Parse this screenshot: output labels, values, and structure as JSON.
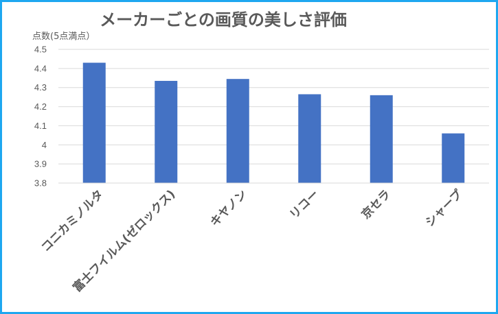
{
  "chart_data": {
    "type": "bar",
    "title": "メーカーごとの画質の美しさ評価",
    "ylabel": "点数(5点満点）",
    "xlabel": "",
    "categories": [
      "コニカミノルタ",
      "富士フイルム(ゼロックス)",
      "キヤノン",
      "リコー",
      "京セラ",
      "シャープ"
    ],
    "values": [
      4.43,
      4.335,
      4.345,
      4.265,
      4.26,
      4.06
    ],
    "ylim": [
      3.8,
      4.5
    ],
    "yticks": [
      "3.8",
      "3.9",
      "4",
      "4.1",
      "4.2",
      "4.3",
      "4.4",
      "4.5"
    ],
    "grid": true,
    "legend": "none",
    "bar_color": "#4472c4",
    "grid_color": "#d9d9d9",
    "border_color": "#1ea7f0"
  }
}
